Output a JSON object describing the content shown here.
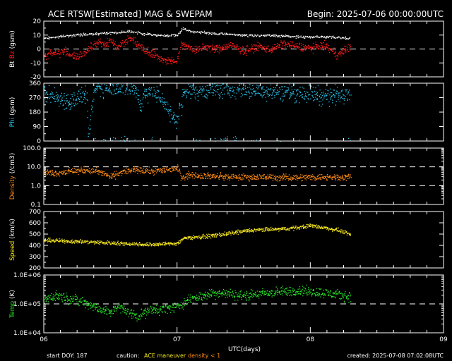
{
  "chart_data": {
    "type": "scatter",
    "title": "ACE RTSW[Estimated] MAG & SWEPAM",
    "begin": "Begin: 2025-07-06 00:00:00UTC",
    "x_axis": {
      "label": "UTC(days)",
      "ticks": [
        "06",
        "07",
        "08",
        "09"
      ],
      "range_days": [
        0,
        3
      ]
    },
    "footer": {
      "start_doy": "start DOY: 187",
      "caution_label": "caution:",
      "maneuver": "ACE maneuver",
      "density_note": "density < 1",
      "created": "created: 2025-07-08 07:02:08UTC"
    },
    "colors": {
      "bt": "#ffffff",
      "bz": "#ff1a1a",
      "phi": "#28c8f0",
      "density": "#ff8c14",
      "speed": "#f5e61e",
      "temp": "#28e628",
      "text": "#ffffff",
      "maneuver": "#f5e61e",
      "density_note": "#ff8c14"
    },
    "panels": [
      {
        "key": "mag",
        "ylabel_parts": [
          {
            "text": "Bt",
            "color": "#ffffff"
          },
          {
            "text": "Bz",
            "color": "#ff1a1a"
          },
          {
            "text": "(gsm)",
            "color": "#ffffff"
          }
        ],
        "ylim": [
          -20,
          20
        ],
        "scale": "linear",
        "ticks": [
          "20",
          "10",
          "0",
          "-10",
          "-20"
        ],
        "tick_values": [
          20,
          10,
          0,
          -10,
          -20
        ],
        "reference_lines": [
          0
        ],
        "series": [
          {
            "name": "Bt",
            "color": "#ffffff",
            "point_spacing_days": 0.004,
            "jitter": 0.6,
            "x": [
              0,
              0.1,
              0.2,
              0.35,
              0.5,
              0.55,
              0.63,
              0.65,
              0.7,
              0.75,
              0.8,
              0.85,
              0.9,
              0.98,
              1.0,
              1.04,
              1.1,
              1.2,
              1.3,
              1.4,
              1.5,
              1.7,
              1.9,
              2.1,
              2.3
            ],
            "y": [
              8,
              9,
              10,
              11,
              12,
              12,
              13,
              13,
              12,
              11,
              11,
              10,
              10,
              10,
              10,
              15,
              13,
              12,
              11,
              11,
              10,
              10,
              9,
              9,
              8
            ]
          },
          {
            "name": "Bz",
            "color": "#ff1a1a",
            "point_spacing_days": 0.0025,
            "jitter": 2.0,
            "x": [
              0,
              0.05,
              0.1,
              0.15,
              0.2,
              0.25,
              0.3,
              0.35,
              0.4,
              0.45,
              0.5,
              0.55,
              0.6,
              0.65,
              0.7,
              0.75,
              0.8,
              0.85,
              0.9,
              0.95,
              1.0,
              1.03,
              1.06,
              1.1,
              1.15,
              1.2,
              1.3,
              1.4,
              1.5,
              1.6,
              1.7,
              1.8,
              1.9,
              2.0,
              2.1,
              2.2,
              2.3
            ],
            "y": [
              -5,
              -2,
              -3,
              -1,
              -4,
              -6,
              -3,
              2,
              5,
              3,
              6,
              2,
              5,
              8,
              4,
              0,
              -2,
              -5,
              -8,
              -8,
              -9,
              5,
              3,
              1,
              -1,
              2,
              0,
              3,
              -1,
              2,
              0,
              4,
              2,
              1,
              3,
              -4,
              2
            ]
          }
        ]
      },
      {
        "key": "phi",
        "ylabel_parts": [
          {
            "text": "Phi",
            "color": "#28c8f0"
          },
          {
            "text": "(gsm)",
            "color": "#ffffff"
          }
        ],
        "ylim": [
          0,
          360
        ],
        "scale": "linear",
        "ticks": [
          "360",
          "270",
          "180",
          "90",
          "0"
        ],
        "tick_values": [
          360,
          270,
          180,
          90,
          0
        ],
        "reference_lines": [],
        "series": [
          {
            "name": "Phi",
            "color": "#28c8f0",
            "point_spacing_days": 0.0025,
            "jitter": 40,
            "x": [
              0,
              0.1,
              0.2,
              0.28,
              0.32,
              0.33,
              0.38,
              0.45,
              0.55,
              0.62,
              0.68,
              0.7,
              0.73,
              0.75,
              0.8,
              0.9,
              0.95,
              0.98,
              1.0,
              1.05,
              1.2,
              1.4,
              1.6,
              1.8,
              2.0,
              2.1,
              2.2,
              2.3
            ],
            "y": [
              300,
              270,
              250,
              280,
              290,
              20,
              330,
              340,
              345,
              330,
              340,
              300,
              200,
              300,
              320,
              250,
              160,
              150,
              130,
              310,
              320,
              330,
              320,
              310,
              300,
              280,
              290,
              320
            ]
          }
        ]
      },
      {
        "key": "density",
        "ylabel_parts": [
          {
            "text": "Density",
            "color": "#ff8c14"
          },
          {
            "text": "(/cm3)",
            "color": "#ffffff"
          }
        ],
        "ylim": [
          0.1,
          100
        ],
        "scale": "log",
        "ticks": [
          "100.0",
          "10.0",
          "1.0",
          "0.1"
        ],
        "tick_values": [
          100,
          10,
          1,
          0.1
        ],
        "reference_lines": [
          10,
          1
        ],
        "series": [
          {
            "name": "Density",
            "color": "#ff8c14",
            "point_spacing_days": 0.0025,
            "jitter": 0.12,
            "x": [
              0,
              0.1,
              0.2,
              0.3,
              0.4,
              0.5,
              0.6,
              0.7,
              0.8,
              0.9,
              1.0,
              1.03,
              1.1,
              1.2,
              1.4,
              1.6,
              1.8,
              2.0,
              2.2,
              2.3
            ],
            "y": [
              5,
              5,
              6,
              7,
              6,
              3,
              6,
              7,
              6,
              7,
              9,
              3,
              4,
              3.5,
              3,
              3,
              2.8,
              3,
              3,
              3
            ]
          }
        ]
      },
      {
        "key": "speed",
        "ylabel_parts": [
          {
            "text": "Speed",
            "color": "#f5e61e"
          },
          {
            "text": "(km/s)",
            "color": "#ffffff"
          }
        ],
        "ylim": [
          200,
          700
        ],
        "scale": "linear",
        "ticks": [
          "700",
          "600",
          "500",
          "400",
          "300",
          "200"
        ],
        "tick_values": [
          700,
          600,
          500,
          400,
          300,
          200
        ],
        "reference_lines": [],
        "series": [
          {
            "name": "Speed",
            "color": "#f5e61e",
            "point_spacing_days": 0.0025,
            "jitter": 12,
            "x": [
              0,
              0.2,
              0.4,
              0.6,
              0.8,
              0.95,
              1.0,
              1.05,
              1.2,
              1.4,
              1.5,
              1.6,
              1.8,
              1.9,
              2.0,
              2.1,
              2.2,
              2.3
            ],
            "y": [
              450,
              440,
              430,
              420,
              410,
              420,
              420,
              470,
              480,
              510,
              530,
              540,
              550,
              560,
              580,
              560,
              540,
              500
            ]
          }
        ]
      },
      {
        "key": "temp",
        "ylabel_parts": [
          {
            "text": "Temp",
            "color": "#28e628"
          },
          {
            "text": "(K)",
            "color": "#ffffff"
          }
        ],
        "ylim": [
          10000,
          1000000
        ],
        "scale": "log",
        "ticks": [
          "1.0E+06",
          "1.0E+05",
          "1.0E+04"
        ],
        "tick_values": [
          1000000,
          100000,
          10000
        ],
        "reference_lines": [
          100000
        ],
        "series": [
          {
            "name": "Temp",
            "color": "#28e628",
            "point_spacing_days": 0.0025,
            "jitter": 0.12,
            "x": [
              0,
              0.1,
              0.2,
              0.3,
              0.4,
              0.5,
              0.55,
              0.6,
              0.7,
              0.8,
              0.9,
              1.0,
              1.1,
              1.2,
              1.3,
              1.5,
              1.7,
              1.9,
              2.1,
              2.3
            ],
            "y": [
              150000,
              200000,
              150000,
              120000,
              70000,
              50000,
              90000,
              60000,
              40000,
              60000,
              70000,
              80000,
              150000,
              200000,
              250000,
              200000,
              250000,
              300000,
              250000,
              180000
            ]
          }
        ]
      }
    ]
  }
}
